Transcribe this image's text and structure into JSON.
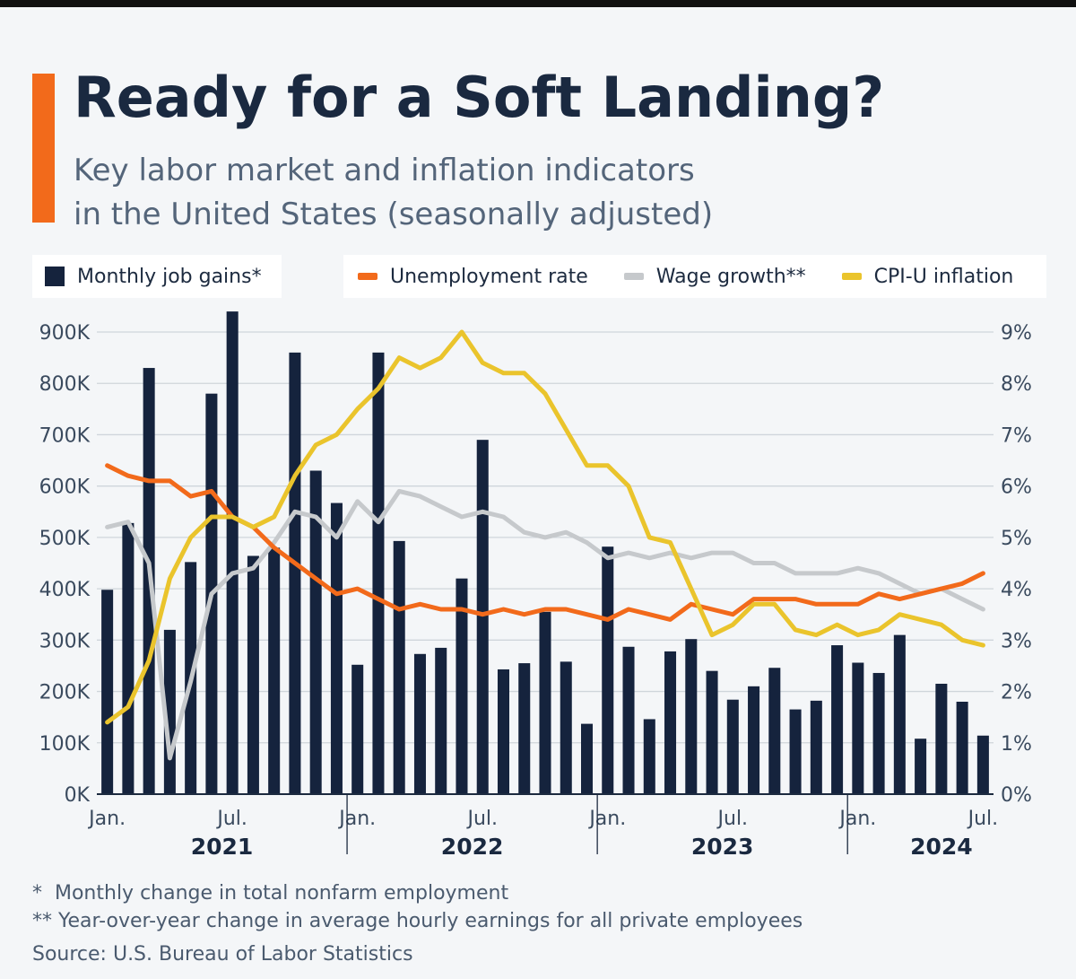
{
  "header": {
    "title": "Ready for a Soft Landing?",
    "subtitle_line1": "Key labor market and inflation indicators",
    "subtitle_line2": "in the United States (seasonally adjusted)"
  },
  "legend": {
    "job_gains": "Monthly job gains*",
    "unemployment": "Unemployment rate",
    "wage": "Wage growth**",
    "cpi": "CPI-U inflation"
  },
  "footnotes": {
    "note1": "*  Monthly change in total nonfarm employment",
    "note2": "** Year-over-year change in average hourly earnings for all private employees",
    "source": "Source: U.S. Bureau of Labor Statistics"
  },
  "colors": {
    "bars": "#15233d",
    "unemployment": "#f26a1b",
    "wage": "#c6c9cc",
    "cpi": "#eac42c",
    "accent": "#f26a1b"
  },
  "chart_data": {
    "type": "bar",
    "categories": [
      "Jan. 2021",
      "Feb. 2021",
      "Mar. 2021",
      "Apr. 2021",
      "May 2021",
      "Jun. 2021",
      "Jul. 2021",
      "Aug. 2021",
      "Sep. 2021",
      "Oct. 2021",
      "Nov. 2021",
      "Dec. 2021",
      "Jan. 2022",
      "Feb. 2022",
      "Mar. 2022",
      "Apr. 2022",
      "May 2022",
      "Jun. 2022",
      "Jul. 2022",
      "Aug. 2022",
      "Sep. 2022",
      "Oct. 2022",
      "Nov. 2022",
      "Dec. 2022",
      "Jan. 2023",
      "Feb. 2023",
      "Mar. 2023",
      "Apr. 2023",
      "May 2023",
      "Jun. 2023",
      "Jul. 2023",
      "Aug. 2023",
      "Sep. 2023",
      "Oct. 2023",
      "Nov. 2023",
      "Dec. 2023",
      "Jan. 2024",
      "Feb. 2024",
      "Mar. 2024",
      "Apr. 2024",
      "May 2024",
      "Jun. 2024",
      "Jul. 2024"
    ],
    "x_tick_labels": [
      {
        "index": 0,
        "label": "Jan."
      },
      {
        "index": 6,
        "label": "Jul."
      },
      {
        "index": 12,
        "label": "Jan."
      },
      {
        "index": 18,
        "label": "Jul."
      },
      {
        "index": 24,
        "label": "Jan."
      },
      {
        "index": 30,
        "label": "Jul."
      },
      {
        "index": 36,
        "label": "Jan."
      },
      {
        "index": 42,
        "label": "Jul."
      }
    ],
    "year_labels": [
      {
        "center_index": 5.5,
        "label": "2021"
      },
      {
        "center_index": 17.5,
        "label": "2022"
      },
      {
        "center_index": 29.5,
        "label": "2023"
      },
      {
        "center_index": 40,
        "label": "2024"
      }
    ],
    "year_separators_after_index": [
      11,
      23,
      35
    ],
    "series": [
      {
        "name": "Monthly job gains*",
        "type": "bar",
        "axis": "left",
        "values": [
          398000,
          528000,
          830000,
          320000,
          452000,
          780000,
          940000,
          464000,
          480000,
          860000,
          630000,
          567000,
          252000,
          860000,
          493000,
          273000,
          285000,
          420000,
          690000,
          243000,
          255000,
          355000,
          258000,
          137000,
          482000,
          287000,
          146000,
          278000,
          302000,
          240000,
          184000,
          210000,
          246000,
          165000,
          182000,
          290000,
          256000,
          236000,
          310000,
          108000,
          215000,
          180000,
          114000
        ]
      },
      {
        "name": "Unemployment rate",
        "type": "line",
        "axis": "right",
        "values": [
          6.4,
          6.2,
          6.1,
          6.1,
          5.8,
          5.9,
          5.4,
          5.2,
          4.8,
          4.5,
          4.2,
          3.9,
          4.0,
          3.8,
          3.6,
          3.7,
          3.6,
          3.6,
          3.5,
          3.6,
          3.5,
          3.6,
          3.6,
          3.5,
          3.4,
          3.6,
          3.5,
          3.4,
          3.7,
          3.6,
          3.5,
          3.8,
          3.8,
          3.8,
          3.7,
          3.7,
          3.7,
          3.9,
          3.8,
          3.9,
          4.0,
          4.1,
          4.3
        ]
      },
      {
        "name": "Wage growth**",
        "type": "line",
        "axis": "right",
        "values": [
          5.2,
          5.3,
          4.5,
          0.7,
          2.2,
          3.9,
          4.3,
          4.4,
          4.9,
          5.5,
          5.4,
          5.0,
          5.7,
          5.3,
          5.9,
          5.8,
          5.6,
          5.4,
          5.5,
          5.4,
          5.1,
          5.0,
          5.1,
          4.9,
          4.6,
          4.7,
          4.6,
          4.7,
          4.6,
          4.7,
          4.7,
          4.5,
          4.5,
          4.3,
          4.3,
          4.3,
          4.4,
          4.3,
          4.1,
          3.9,
          4.0,
          3.8,
          3.6
        ]
      },
      {
        "name": "CPI-U inflation",
        "type": "line",
        "axis": "right",
        "values": [
          1.4,
          1.7,
          2.6,
          4.2,
          5.0,
          5.4,
          5.4,
          5.2,
          5.4,
          6.2,
          6.8,
          7.0,
          7.5,
          7.9,
          8.5,
          8.3,
          8.5,
          9.0,
          8.4,
          8.2,
          8.2,
          7.8,
          7.1,
          6.4,
          6.4,
          6.0,
          5.0,
          4.9,
          4.0,
          3.1,
          3.3,
          3.7,
          3.7,
          3.2,
          3.1,
          3.3,
          3.1,
          3.2,
          3.5,
          3.4,
          3.3,
          3.0,
          2.9
        ]
      }
    ],
    "y_left": {
      "ylim": [
        0,
        900000
      ],
      "ticks": [
        {
          "value": 0,
          "label": "0K"
        },
        {
          "value": 100000,
          "label": "100K"
        },
        {
          "value": 200000,
          "label": "200K"
        },
        {
          "value": 300000,
          "label": "300K"
        },
        {
          "value": 400000,
          "label": "400K"
        },
        {
          "value": 500000,
          "label": "500K"
        },
        {
          "value": 600000,
          "label": "600K"
        },
        {
          "value": 700000,
          "label": "700K"
        },
        {
          "value": 800000,
          "label": "800K"
        },
        {
          "value": 900000,
          "label": "900K"
        }
      ]
    },
    "y_right": {
      "ylim": [
        0,
        9
      ],
      "ticks": [
        {
          "value": 0,
          "label": "0%"
        },
        {
          "value": 1,
          "label": "1%"
        },
        {
          "value": 2,
          "label": "2%"
        },
        {
          "value": 3,
          "label": "3%"
        },
        {
          "value": 4,
          "label": "4%"
        },
        {
          "value": 5,
          "label": "5%"
        },
        {
          "value": 6,
          "label": "6%"
        },
        {
          "value": 7,
          "label": "7%"
        },
        {
          "value": 8,
          "label": "8%"
        },
        {
          "value": 9,
          "label": "9%"
        }
      ]
    },
    "grid": true,
    "legend_position": "top"
  }
}
